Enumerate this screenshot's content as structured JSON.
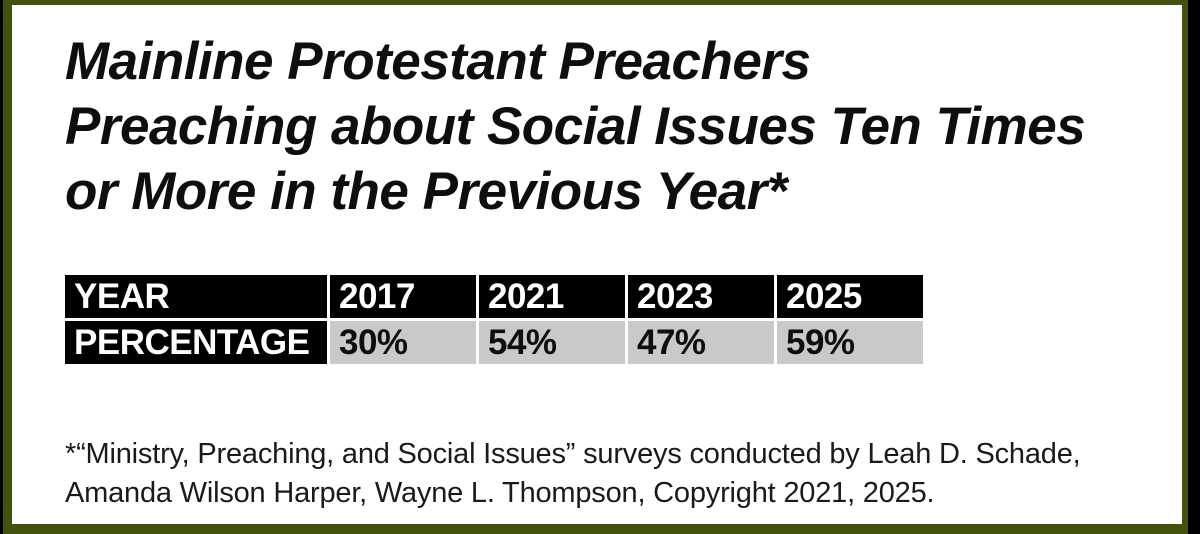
{
  "chart_data": {
    "type": "table",
    "title": "Mainline Protestant Preachers Preaching about Social Issues Ten Times or More in the Previous Year*",
    "row_headers": [
      "YEAR",
      "PERCENTAGE"
    ],
    "categories": [
      "2017",
      "2021",
      "2023",
      "2025"
    ],
    "values": [
      30,
      54,
      47,
      59
    ],
    "values_display": [
      "30%",
      "54%",
      "47%",
      "59%"
    ],
    "footnote": "*“Ministry, Preaching, and Social Issues” surveys conducted by Leah D. Schade, Amanda Wilson Harper, Wayne L. Thompson, Copyright 2021, 2025.",
    "legend": "none",
    "grid": "off"
  },
  "title": {
    "line1": "Mainline Protestant Preachers",
    "line2": "Preaching about Social Issues Ten Times",
    "line3": "or More in the Previous Year*"
  },
  "footnote": {
    "line1": "*“Ministry, Preaching, and Social Issues” surveys conducted by Leah D. Schade,",
    "line2": "Amanda Wilson Harper, Wayne L. Thompson, Copyright 2021, 2025."
  },
  "colors": {
    "frame_green": "#42530d",
    "frame_black": "#000000",
    "header_cell_black": "#000000",
    "data_cell_gray": "#c9c9c9",
    "header_text_white": "#ffffff",
    "body_text_black": "#0e0e0e"
  }
}
